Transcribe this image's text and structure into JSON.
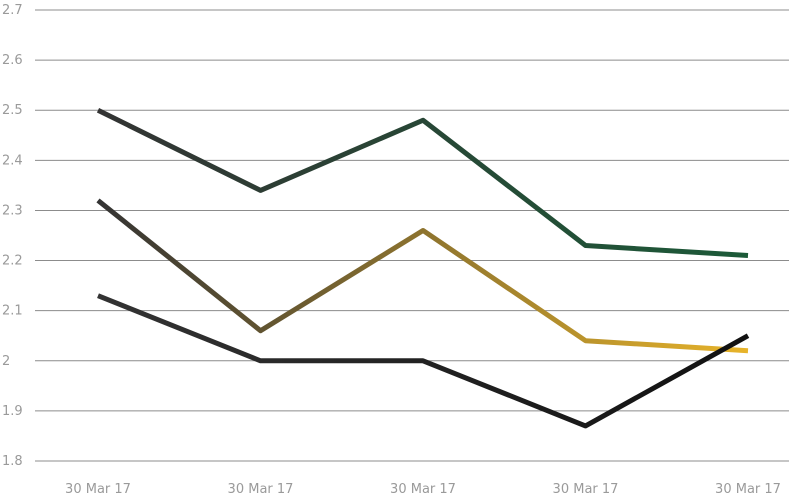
{
  "chart_data": {
    "type": "line",
    "categories": [
      "30 Mar 17",
      "30 Mar 17",
      "30 Mar 17",
      "30 Mar 17",
      "30 Mar 17"
    ],
    "ylim": [
      1.8,
      2.7
    ],
    "yticks": [
      1.8,
      1.9,
      2,
      2.1,
      2.2,
      2.3,
      2.4,
      2.5,
      2.6,
      2.7
    ],
    "ytick_labels": [
      "1.8",
      "1.9",
      "2",
      "2.1",
      "2.2",
      "2.3",
      "2.4",
      "2.5",
      "2.6",
      "2.7"
    ],
    "grid": true,
    "legend": "none",
    "series": [
      {
        "values": [
          2.5,
          2.34,
          2.48,
          2.23,
          2.21
        ],
        "color_start": "#333333",
        "color_end": "#1c5a38"
      },
      {
        "values": [
          2.32,
          2.06,
          2.26,
          2.04,
          2.02
        ],
        "color_start": "#333333",
        "color_end": "#e8b42a"
      },
      {
        "values": [
          2.13,
          2.0,
          2.0,
          1.87,
          2.05
        ],
        "color_start": "#333333",
        "color_end": "#111111"
      }
    ]
  }
}
